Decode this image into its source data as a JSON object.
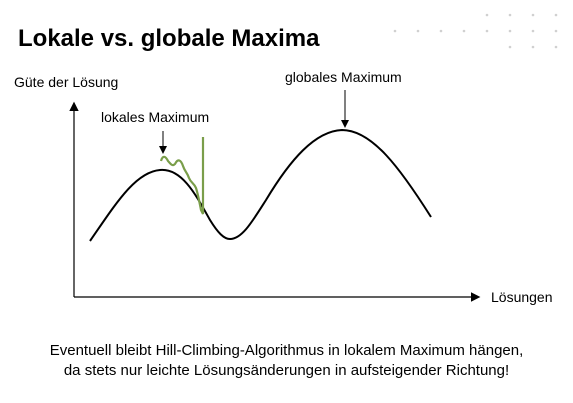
{
  "slide": {
    "title": "Lokale vs. globale Maxima",
    "y_axis_label": "Güte der Lösung",
    "x_axis_label": "Lösungen",
    "local_max_label": "lokales Maximum",
    "global_max_label": "globales Maximum",
    "caption_line1": "Eventuell bleibt Hill-Climbing-Algorithmus in lokalem Maximum hängen,",
    "caption_line2": "da stets nur leichte Lösungsänderungen in aufsteigender Richtung!"
  },
  "colors": {
    "curve": "#000000",
    "axes": "#000000",
    "search_path": "#7a9e4a",
    "dots": "#d0d0d0"
  }
}
